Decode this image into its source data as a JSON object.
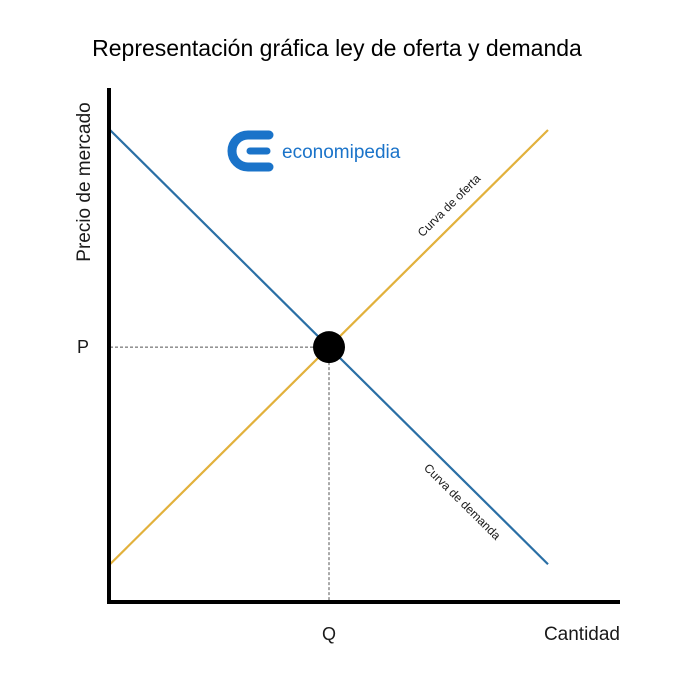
{
  "chart_data": {
    "type": "line",
    "title": "Representación gráfica ley de oferta y demanda",
    "xlabel": "Cantidad",
    "ylabel": "Precio de mercado",
    "xlim": [
      0,
      10
    ],
    "ylim": [
      0,
      10
    ],
    "x_tick_label": "Q",
    "y_tick_label": "P",
    "series": [
      {
        "name": "Curva de demanda",
        "color": "#2a6fa5",
        "points": [
          [
            0,
            10
          ],
          [
            10,
            0.8
          ]
        ]
      },
      {
        "name": "Curva de oferta",
        "color": "#e2b13c",
        "points": [
          [
            0,
            0.8
          ],
          [
            10,
            10
          ]
        ]
      }
    ],
    "equilibrium": {
      "x": 5,
      "y": 5.4
    },
    "grid": false,
    "legend": "none"
  },
  "logo": {
    "text": "economipedia",
    "color": "#1a73c9",
    "icon": "economipedia-logo-icon"
  }
}
